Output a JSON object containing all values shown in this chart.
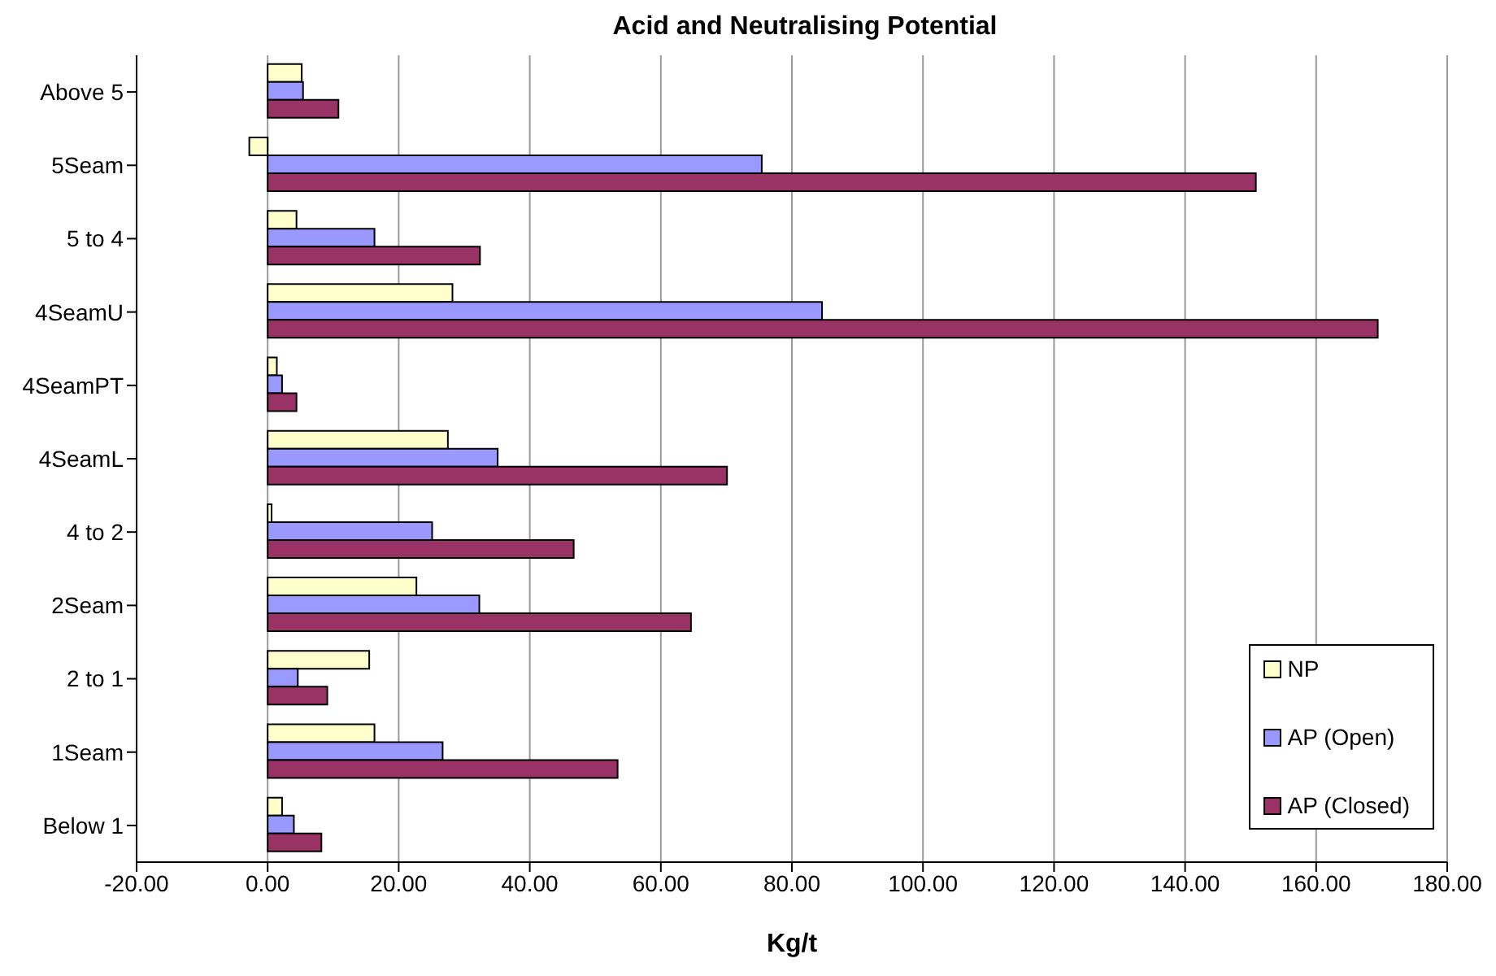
{
  "chart_data": {
    "type": "bar",
    "orientation": "horizontal",
    "title": "Acid and Neutralising Potential",
    "xlabel": "Kg/t",
    "categories": [
      "Above 5",
      "5Seam",
      "5 to 4",
      "4SeamU",
      "4SeamPT",
      "4SeamL",
      "4 to 2",
      "2Seam",
      "2 to 1",
      "1Seam",
      "Below 1"
    ],
    "series": [
      {
        "name": "NP",
        "color": "#ffffcc",
        "values": [
          5.2,
          -2.8,
          4.4,
          28.2,
          1.4,
          27.5,
          0.6,
          22.7,
          15.5,
          16.3,
          2.2
        ]
      },
      {
        "name": "AP (Open)",
        "color": "#9999ff",
        "values": [
          5.4,
          75.4,
          16.3,
          84.6,
          2.2,
          35.1,
          25.1,
          32.3,
          4.6,
          26.7,
          4.0
        ]
      },
      {
        "name": "AP (Closed)",
        "color": "#993366",
        "values": [
          10.8,
          150.8,
          32.4,
          169.4,
          4.4,
          70.1,
          46.7,
          64.6,
          9.1,
          53.4,
          8.2
        ]
      }
    ],
    "xlim": [
      -20,
      180
    ],
    "xticks": [
      {
        "value": -20,
        "label": "-20.00"
      },
      {
        "value": 0,
        "label": "0.00"
      },
      {
        "value": 20,
        "label": "20.00"
      },
      {
        "value": 40,
        "label": "40.00"
      },
      {
        "value": 60,
        "label": "60.00"
      },
      {
        "value": 80,
        "label": "80.00"
      },
      {
        "value": 100,
        "label": "100.00"
      },
      {
        "value": 120,
        "label": "120.00"
      },
      {
        "value": 140,
        "label": "140.00"
      },
      {
        "value": 160,
        "label": "160.00"
      },
      {
        "value": 180,
        "label": "180.00"
      }
    ],
    "grid": "x",
    "legend": "bottom right"
  }
}
